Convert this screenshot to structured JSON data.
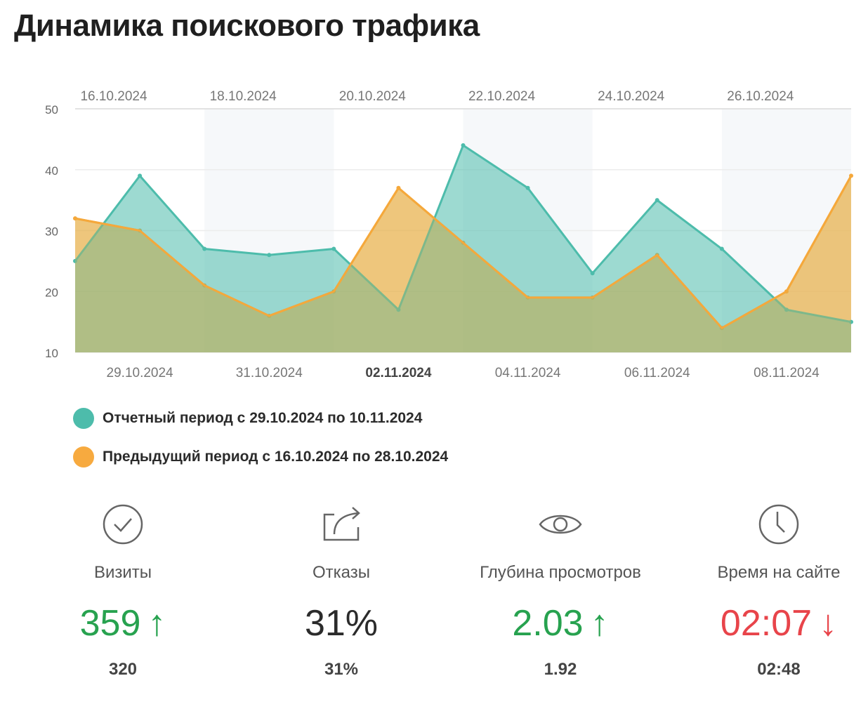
{
  "title": "Динамика поискового трафика",
  "colors": {
    "current": "#4dbcab",
    "current_fill": "rgba(77,188,171,0.55)",
    "previous": "#f5a83b",
    "previous_fill": "rgba(246,178,77,0.6)",
    "up": "#27a24f",
    "down": "#e8444a",
    "neutral": "#2b2b2b",
    "band": "#f6f8fa",
    "grid": "#ececec"
  },
  "chart_data": {
    "type": "area",
    "title": "Динамика поискового трафика",
    "ylim": [
      10,
      50
    ],
    "yticks": [
      10,
      20,
      30,
      40,
      50
    ],
    "grid": true,
    "legend_position": "bottom-left",
    "x_bottom_labels": [
      "29.10.2024",
      "31.10.2024",
      "02.11.2024",
      "04.11.2024",
      "06.11.2024",
      "08.11.2024"
    ],
    "x_top_labels": [
      "16.10.2024",
      "18.10.2024",
      "20.10.2024",
      "22.10.2024",
      "24.10.2024",
      "26.10.2024"
    ],
    "x_current": [
      "29.10.2024",
      "30.10.2024",
      "31.10.2024",
      "01.11.2024",
      "02.11.2024",
      "03.11.2024",
      "04.11.2024",
      "05.11.2024",
      "06.11.2024",
      "07.11.2024",
      "08.11.2024",
      "09.11.2024",
      "10.11.2024"
    ],
    "x_previous": [
      "16.10.2024",
      "17.10.2024",
      "18.10.2024",
      "19.10.2024",
      "20.10.2024",
      "21.10.2024",
      "22.10.2024",
      "23.10.2024",
      "24.10.2024",
      "25.10.2024",
      "26.10.2024",
      "27.10.2024",
      "28.10.2024"
    ],
    "series": [
      {
        "name": "Отчетный период с 29.10.2024 по 10.11.2024",
        "values": [
          25,
          39,
          27,
          26,
          27,
          17,
          44,
          37,
          23,
          35,
          27,
          17,
          15
        ]
      },
      {
        "name": "Предыдущий период с 16.10.2024 по 28.10.2024",
        "values": [
          32,
          30,
          21,
          16,
          20,
          37,
          28,
          19,
          19,
          26,
          14,
          20,
          39
        ]
      }
    ]
  },
  "legend": [
    {
      "label": "Отчетный период с 29.10.2024 по 10.11.2024",
      "color": "#4dbcab"
    },
    {
      "label": "Предыдущий период с 16.10.2024 по 28.10.2024",
      "color": "#f7aa3f"
    }
  ],
  "stats": [
    {
      "icon": "check-circle-icon",
      "label": "Визиты",
      "value": "359",
      "arrow": "↑",
      "trend": "up",
      "previous": "320"
    },
    {
      "icon": "share-exit-icon",
      "label": "Отказы",
      "value": "31%",
      "arrow": "",
      "trend": "neutral",
      "previous": "31%"
    },
    {
      "icon": "eye-icon",
      "label": "Глубина просмотров",
      "value": "2.03",
      "arrow": "↑",
      "trend": "up",
      "previous": "1.92"
    },
    {
      "icon": "clock-icon",
      "label": "Время на сайте",
      "value": "02:07",
      "arrow": "↓",
      "trend": "down",
      "previous": "02:48"
    }
  ]
}
